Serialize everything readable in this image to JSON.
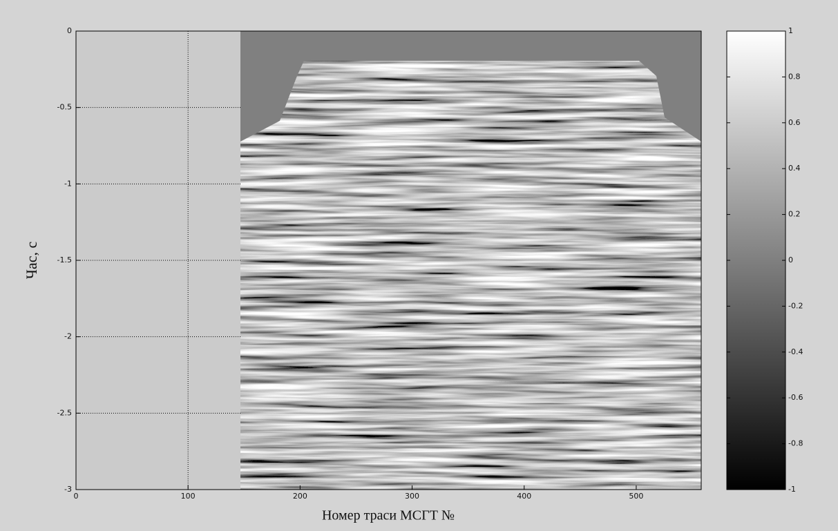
{
  "chart_data": {
    "type": "image",
    "xlabel": "Номер траси МСГТ №",
    "ylabel": "Час, с",
    "xlim": [
      0,
      558
    ],
    "xticks": [
      0,
      100,
      200,
      300,
      400,
      500
    ],
    "ylim": [
      -3,
      0
    ],
    "yticks": [
      0,
      -0.5,
      -1,
      -1.5,
      -2,
      -2.5,
      -3
    ],
    "grid": true,
    "colormap": "gray",
    "colorbar": {
      "clim": [
        -1,
        1
      ],
      "ticks": [
        1,
        0.8,
        0.6,
        0.4,
        0.2,
        0,
        -0.2,
        -0.4,
        -0.6,
        -0.8,
        -1
      ]
    }
  }
}
